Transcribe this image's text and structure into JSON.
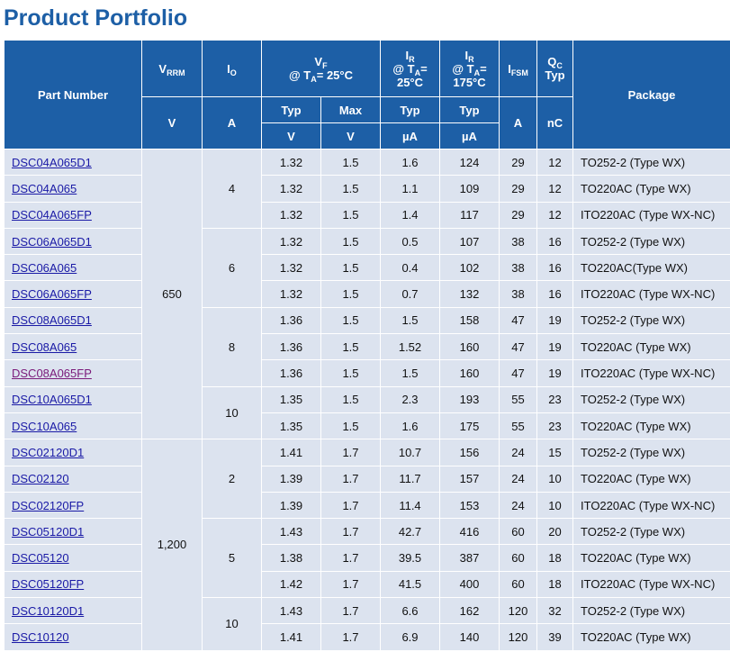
{
  "title": "Product Portfolio",
  "table": {
    "header": {
      "part_number": "Part Number",
      "vrrm": {
        "main": "V",
        "sub": "RRM",
        "unit": "V"
      },
      "io": {
        "main": "I",
        "sub": "O",
        "unit": "A"
      },
      "vf": {
        "main": "V",
        "sub": "F",
        "cond_pre": "@ T",
        "cond_sub": "A",
        "cond_post": "= 25°C",
        "typ": "Typ",
        "max": "Max",
        "typ_unit": "V",
        "max_unit": "V"
      },
      "ir_25": {
        "main": "I",
        "sub": "R",
        "cond_pre": "@ T",
        "cond_sub": "A",
        "cond_post": "=",
        "temp": "25°C",
        "typ": "Typ",
        "unit": "µA"
      },
      "ir_175": {
        "main": "I",
        "sub": "R",
        "cond_pre": "@ T",
        "cond_sub": "A",
        "cond_post": "=",
        "temp": "175°C",
        "typ": "Typ",
        "unit": "µA"
      },
      "ifsm": {
        "main": "I",
        "sub": "FSM",
        "unit": "A"
      },
      "qc": {
        "main": "Q",
        "sub": "C",
        "typ": "Typ",
        "unit": "nC"
      },
      "package": "Package"
    },
    "voltage_groups": [
      {
        "vrrm": "650",
        "current_groups": [
          {
            "io": "4",
            "parts": [
              {
                "part": "DSC04A065D1",
                "vf_typ": "1.32",
                "vf_max": "1.5",
                "ir_25": "1.6",
                "ir_175": "124",
                "ifsm": "29",
                "qc": "12",
                "package": "TO252-2 (Type WX)"
              },
              {
                "part": "DSC04A065",
                "vf_typ": "1.32",
                "vf_max": "1.5",
                "ir_25": "1.1",
                "ir_175": "109",
                "ifsm": "29",
                "qc": "12",
                "package": "TO220AC (Type WX)"
              },
              {
                "part": "DSC04A065FP",
                "vf_typ": "1.32",
                "vf_max": "1.5",
                "ir_25": "1.4",
                "ir_175": "117",
                "ifsm": "29",
                "qc": "12",
                "package": "ITO220AC (Type WX-NC)"
              }
            ]
          },
          {
            "io": "6",
            "parts": [
              {
                "part": "DSC06A065D1",
                "vf_typ": "1.32",
                "vf_max": "1.5",
                "ir_25": "0.5",
                "ir_175": "107",
                "ifsm": "38",
                "qc": "16",
                "package": "TO252-2 (Type WX)"
              },
              {
                "part": "DSC06A065",
                "vf_typ": "1.32",
                "vf_max": "1.5",
                "ir_25": "0.4",
                "ir_175": "102",
                "ifsm": "38",
                "qc": "16",
                "package": "TO220AC(Type WX)"
              },
              {
                "part": "DSC06A065FP",
                "vf_typ": "1.32",
                "vf_max": "1.5",
                "ir_25": "0.7",
                "ir_175": "132",
                "ifsm": "38",
                "qc": "16",
                "package": "ITO220AC (Type WX-NC)"
              }
            ]
          },
          {
            "io": "8",
            "parts": [
              {
                "part": "DSC08A065D1",
                "vf_typ": "1.36",
                "vf_max": "1.5",
                "ir_25": "1.5",
                "ir_175": "158",
                "ifsm": "47",
                "qc": "19",
                "package": "TO252-2 (Type WX)"
              },
              {
                "part": "DSC08A065",
                "vf_typ": "1.36",
                "vf_max": "1.5",
                "ir_25": "1.52",
                "ir_175": "160",
                "ifsm": "47",
                "qc": "19",
                "package": "TO220AC (Type WX)"
              },
              {
                "part": "DSC08A065FP",
                "visited": true,
                "vf_typ": "1.36",
                "vf_max": "1.5",
                "ir_25": "1.5",
                "ir_175": "160",
                "ifsm": "47",
                "qc": "19",
                "package": "ITO220AC (Type WX-NC)"
              }
            ]
          },
          {
            "io": "10",
            "parts": [
              {
                "part": "DSC10A065D1",
                "vf_typ": "1.35",
                "vf_max": "1.5",
                "ir_25": "2.3",
                "ir_175": "193",
                "ifsm": "55",
                "qc": "23",
                "package": "TO252-2 (Type WX)"
              },
              {
                "part": "DSC10A065",
                "vf_typ": "1.35",
                "vf_max": "1.5",
                "ir_25": "1.6",
                "ir_175": "175",
                "ifsm": "55",
                "qc": "23",
                "package": "TO220AC (Type WX)"
              }
            ]
          }
        ]
      },
      {
        "vrrm": "1,200",
        "current_groups": [
          {
            "io": "2",
            "parts": [
              {
                "part": "DSC02120D1",
                "vf_typ": "1.41",
                "vf_max": "1.7",
                "ir_25": "10.7",
                "ir_175": "156",
                "ifsm": "24",
                "qc": "15",
                "package": "TO252-2 (Type WX)"
              },
              {
                "part": "DSC02120",
                "vf_typ": "1.39",
                "vf_max": "1.7",
                "ir_25": "11.7",
                "ir_175": "157",
                "ifsm": "24",
                "qc": "10",
                "package": "TO220AC (Type WX)"
              },
              {
                "part": "DSC02120FP",
                "vf_typ": "1.39",
                "vf_max": "1.7",
                "ir_25": "11.4",
                "ir_175": "153",
                "ifsm": "24",
                "qc": "10",
                "package": "ITO220AC (Type WX-NC)"
              }
            ]
          },
          {
            "io": "5",
            "parts": [
              {
                "part": "DSC05120D1",
                "vf_typ": "1.43",
                "vf_max": "1.7",
                "ir_25": "42.7",
                "ir_175": "416",
                "ifsm": "60",
                "qc": "20",
                "package": "TO252-2 (Type WX)"
              },
              {
                "part": "DSC05120",
                "vf_typ": "1.38",
                "vf_max": "1.7",
                "ir_25": "39.5",
                "ir_175": "387",
                "ifsm": "60",
                "qc": "18",
                "package": "TO220AC (Type WX)"
              },
              {
                "part": "DSC05120FP",
                "vf_typ": "1.42",
                "vf_max": "1.7",
                "ir_25": "41.5",
                "ir_175": "400",
                "ifsm": "60",
                "qc": "18",
                "package": "ITO220AC (Type WX-NC)"
              }
            ]
          },
          {
            "io": "10",
            "parts": [
              {
                "part": "DSC10120D1",
                "vf_typ": "1.43",
                "vf_max": "1.7",
                "ir_25": "6.6",
                "ir_175": "162",
                "ifsm": "120",
                "qc": "32",
                "package": "TO252-2 (Type WX)"
              },
              {
                "part": "DSC10120",
                "vf_typ": "1.41",
                "vf_max": "1.7",
                "ir_25": "6.9",
                "ir_175": "140",
                "ifsm": "120",
                "qc": "39",
                "package": "TO220AC (Type WX)"
              }
            ]
          }
        ]
      }
    ]
  }
}
